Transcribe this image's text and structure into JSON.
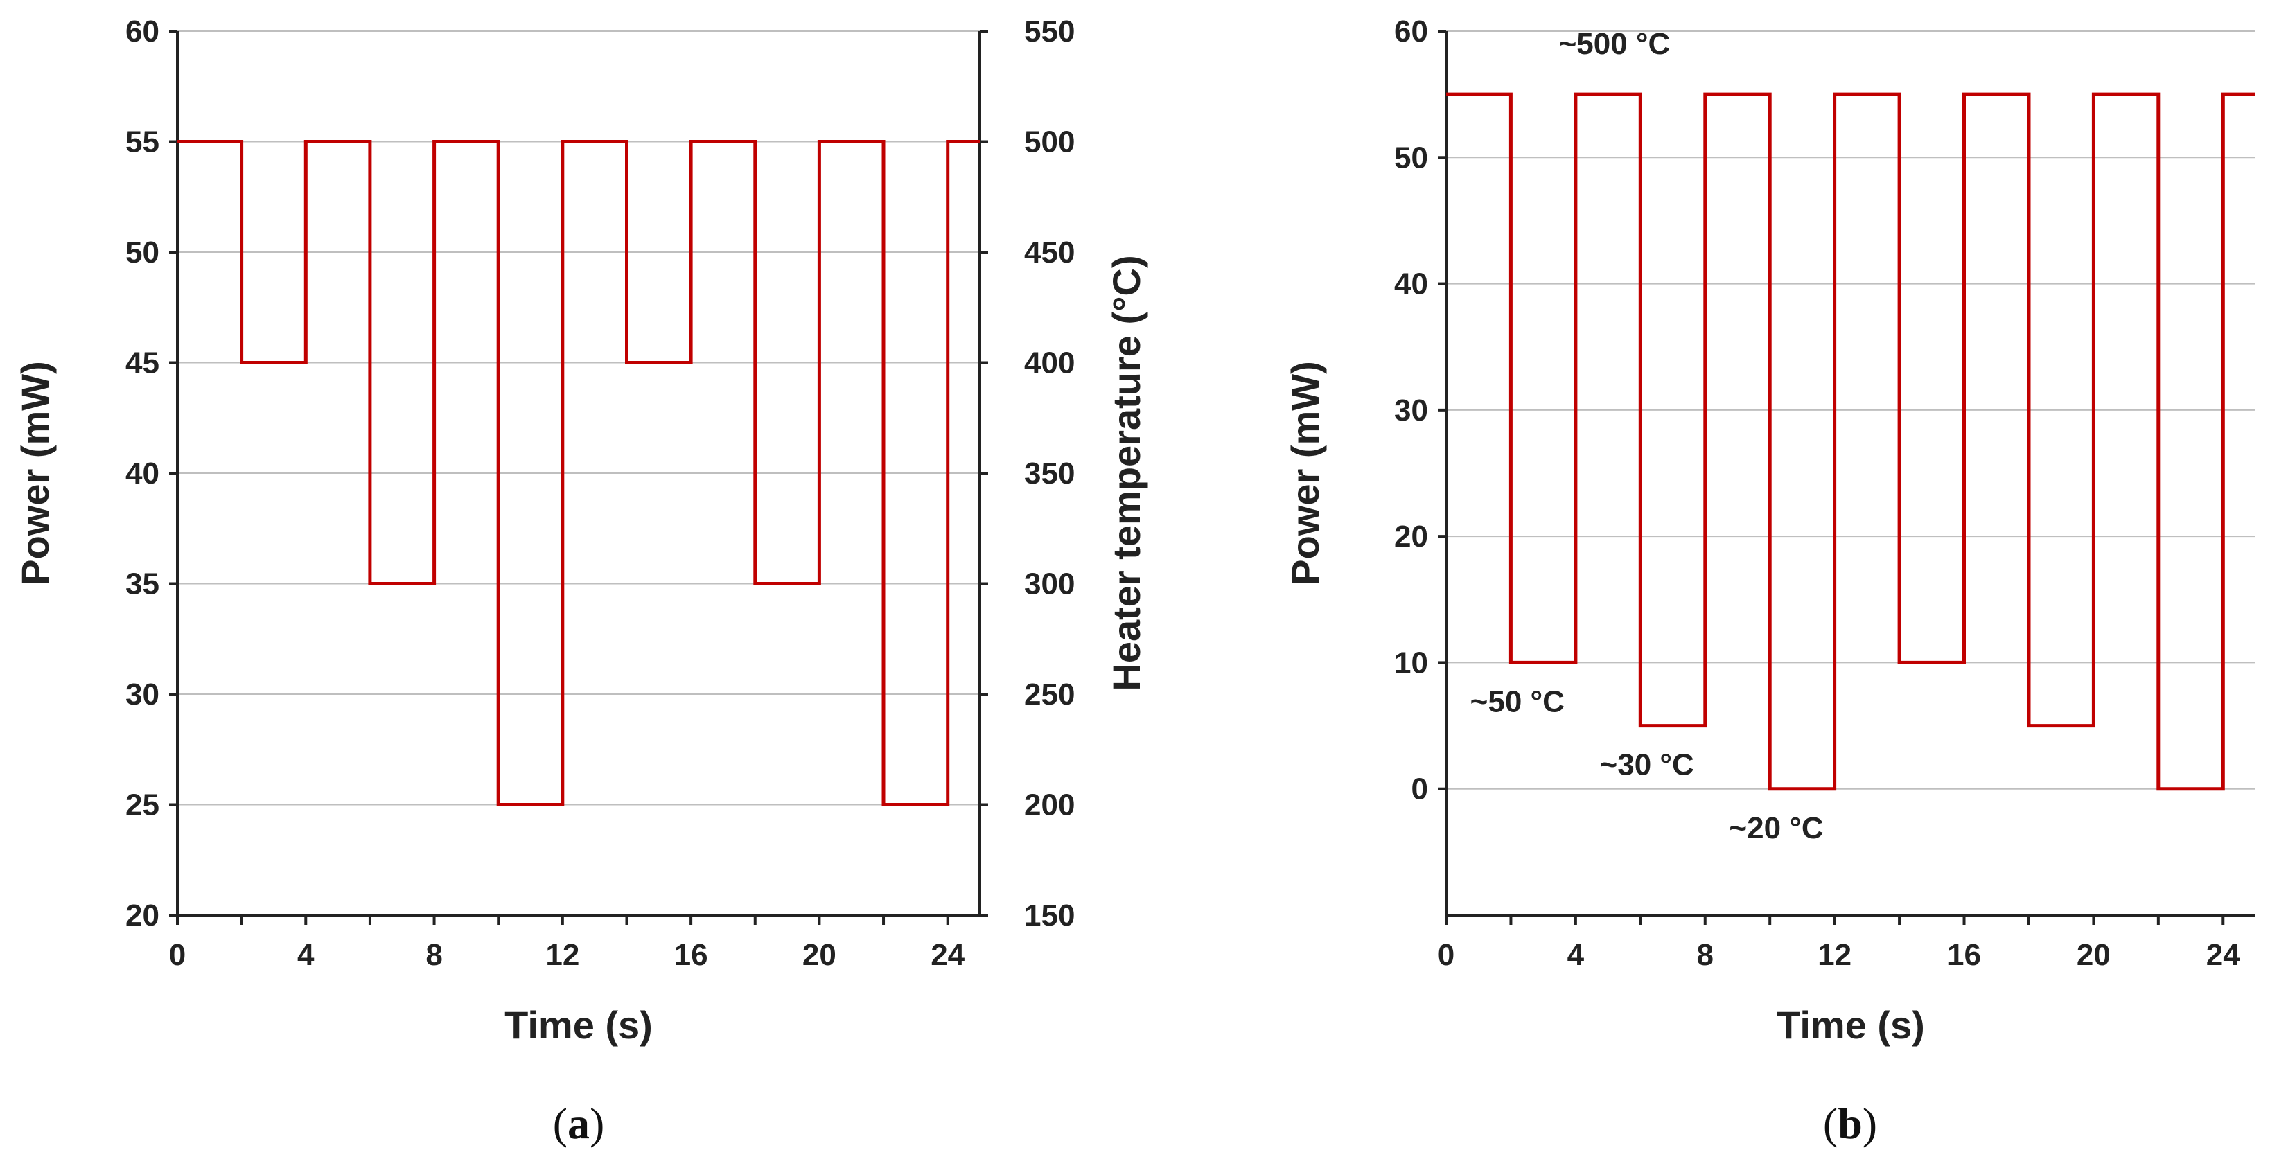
{
  "chart_data": [
    {
      "id": "a",
      "type": "line",
      "step": true,
      "panel_label": {
        "open": "(",
        "letter": "a",
        "close": ")"
      },
      "xlabel": "Time (s)",
      "ylabel": "Power (mW)",
      "y2label": "Heater temperature (°C)",
      "xlim": [
        0,
        25
      ],
      "ylim": [
        20,
        60
      ],
      "y2lim": [
        150,
        550
      ],
      "xticks": [
        0,
        4,
        8,
        12,
        16,
        20,
        24
      ],
      "xminor_ticks": [
        2,
        6,
        10,
        14,
        18,
        22
      ],
      "yticks": [
        20,
        25,
        30,
        35,
        40,
        45,
        50,
        55,
        60
      ],
      "y2ticks": [
        150,
        200,
        250,
        300,
        350,
        400,
        450,
        500,
        550
      ],
      "grid": "horizontal",
      "series": [
        {
          "name": "Power",
          "color": "#c00000",
          "x": [
            0,
            2,
            2,
            4,
            4,
            6,
            6,
            8,
            8,
            10,
            10,
            12,
            12,
            14,
            14,
            16,
            16,
            18,
            18,
            20,
            20,
            22,
            22,
            24,
            24,
            25
          ],
          "y": [
            55,
            55,
            45,
            45,
            55,
            55,
            35,
            35,
            55,
            55,
            25,
            25,
            55,
            55,
            45,
            45,
            55,
            55,
            35,
            35,
            55,
            55,
            25,
            25,
            55,
            55
          ]
        }
      ],
      "annotations": []
    },
    {
      "id": "b",
      "type": "line",
      "step": true,
      "panel_label": {
        "open": "(",
        "letter": "b",
        "close": ")"
      },
      "xlabel": "Time (s)",
      "ylabel": "Power (mW)",
      "xlim": [
        0,
        25
      ],
      "ylim": [
        -10,
        60
      ],
      "xticks": [
        0,
        4,
        8,
        12,
        16,
        20,
        24
      ],
      "xminor_ticks": [
        2,
        6,
        10,
        14,
        18,
        22
      ],
      "yticks": [
        0,
        10,
        20,
        30,
        40,
        50,
        60
      ],
      "grid": "horizontal",
      "series": [
        {
          "name": "Power",
          "color": "#c00000",
          "x": [
            0,
            2,
            2,
            4,
            4,
            6,
            6,
            8,
            8,
            10,
            10,
            12,
            12,
            14,
            14,
            16,
            16,
            18,
            18,
            20,
            20,
            22,
            22,
            24,
            24,
            25
          ],
          "y": [
            55,
            55,
            10,
            10,
            55,
            55,
            5,
            5,
            55,
            55,
            0,
            0,
            55,
            55,
            10,
            10,
            55,
            55,
            5,
            5,
            55,
            55,
            0,
            0,
            55,
            55
          ]
        }
      ],
      "annotations": [
        {
          "text": "~500 °C",
          "x": 5.2,
          "y": 58.2
        },
        {
          "text": "~50 °C",
          "x": 2.2,
          "y": 6.1
        },
        {
          "text": "~30 °C",
          "x": 6.2,
          "y": 1.1
        },
        {
          "text": "~20 °C",
          "x": 10.2,
          "y": -3.9
        }
      ]
    }
  ]
}
